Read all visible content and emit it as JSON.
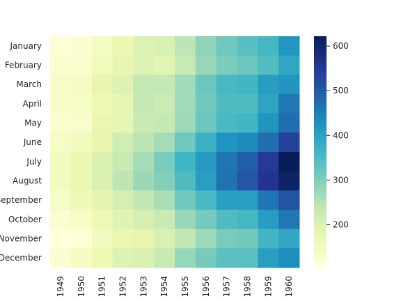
{
  "chart_data": {
    "type": "heatmap",
    "title": "",
    "xlabel": "",
    "ylabel": "",
    "x": [
      "1949",
      "1950",
      "1951",
      "1952",
      "1953",
      "1954",
      "1955",
      "1956",
      "1957",
      "1958",
      "1959",
      "1960"
    ],
    "y": [
      "January",
      "February",
      "March",
      "April",
      "May",
      "June",
      "July",
      "August",
      "September",
      "October",
      "November",
      "December"
    ],
    "values": [
      [
        112,
        115,
        145,
        171,
        196,
        204,
        242,
        284,
        315,
        340,
        360,
        417
      ],
      [
        118,
        126,
        150,
        180,
        196,
        188,
        233,
        277,
        301,
        318,
        342,
        391
      ],
      [
        132,
        141,
        178,
        193,
        236,
        235,
        267,
        317,
        356,
        362,
        406,
        419
      ],
      [
        129,
        135,
        163,
        181,
        235,
        227,
        269,
        313,
        348,
        348,
        396,
        461
      ],
      [
        121,
        125,
        172,
        183,
        229,
        234,
        270,
        318,
        355,
        363,
        420,
        472
      ],
      [
        135,
        149,
        178,
        218,
        243,
        264,
        315,
        374,
        422,
        435,
        472,
        535
      ],
      [
        148,
        170,
        199,
        230,
        264,
        302,
        364,
        413,
        465,
        491,
        548,
        622
      ],
      [
        148,
        170,
        199,
        242,
        272,
        293,
        347,
        405,
        467,
        505,
        559,
        606
      ],
      [
        136,
        158,
        184,
        209,
        237,
        259,
        312,
        355,
        404,
        404,
        463,
        508
      ],
      [
        119,
        133,
        162,
        191,
        211,
        229,
        274,
        306,
        347,
        359,
        407,
        461
      ],
      [
        104,
        114,
        146,
        172,
        180,
        203,
        237,
        271,
        305,
        310,
        362,
        390
      ],
      [
        118,
        140,
        166,
        194,
        201,
        229,
        278,
        306,
        336,
        337,
        405,
        432
      ]
    ],
    "colorscale": "YlGnBu",
    "vmin": 104,
    "vmax": 622,
    "colorbar_ticks": [
      200,
      300,
      400,
      500,
      600
    ],
    "grid": false
  }
}
